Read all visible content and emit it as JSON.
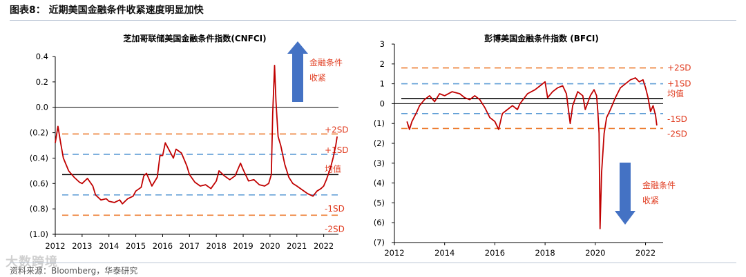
{
  "figure": {
    "title": "图表8：  近期美国金融条件收紧速度明显加快",
    "source": "资料来源：Bloomberg，华泰研究",
    "watermark": "大数跨境"
  },
  "colors": {
    "series": "#c00000",
    "zero": "#000000",
    "sd2": "#ed7d31",
    "sd1": "#5b9bd5",
    "arrow": "#4472c4",
    "mean": "#000000",
    "label": "#e03a1e"
  },
  "chart_data": [
    {
      "type": "line",
      "title": "芝加哥联储美国金融条件指数(CNFCI)",
      "xlabel": "",
      "ylabel": "",
      "x_range": [
        2012,
        2022.55
      ],
      "x_ticks": [
        2012,
        2013,
        2014,
        2015,
        2016,
        2017,
        2018,
        2019,
        2020,
        2021,
        2022
      ],
      "x_tick_labels": [
        "2012",
        "2013",
        "2014",
        "2015",
        "2016",
        "2017",
        "2018",
        "2019",
        "2020",
        "2021",
        "2022"
      ],
      "ylim": [
        -1.0,
        0.4
      ],
      "y_ticks": [
        0.4,
        0.2,
        0.0,
        -0.2,
        -0.4,
        -0.6,
        -0.8,
        -1.0
      ],
      "y_tick_labels": [
        "0.4",
        "0.2",
        "0.0",
        "(0.2)",
        "(0.4)",
        "(0.6)",
        "(0.8)",
        "(1.0)"
      ],
      "zero_line": 0.0,
      "reference_lines": [
        {
          "name": "+2SD",
          "value": -0.21,
          "style": "sd2"
        },
        {
          "name": "+1SD",
          "value": -0.37,
          "style": "sd1"
        },
        {
          "name": "均值",
          "value": -0.53,
          "style": "mean"
        },
        {
          "name": "-1SD",
          "value": -0.69,
          "style": "sd1"
        },
        {
          "name": "-2SD",
          "value": -0.85,
          "style": "sd2"
        }
      ],
      "annotation": {
        "text_lines": [
          "金融条件",
          "收紧"
        ],
        "direction": "up"
      },
      "series": [
        {
          "name": "CNFCI",
          "points": [
            [
              2012.0,
              -0.28
            ],
            [
              2012.1,
              -0.15
            ],
            [
              2012.2,
              -0.28
            ],
            [
              2012.3,
              -0.4
            ],
            [
              2012.5,
              -0.5
            ],
            [
              2012.7,
              -0.55
            ],
            [
              2012.9,
              -0.59
            ],
            [
              2013.0,
              -0.6
            ],
            [
              2013.2,
              -0.56
            ],
            [
              2013.4,
              -0.62
            ],
            [
              2013.5,
              -0.69
            ],
            [
              2013.7,
              -0.73
            ],
            [
              2013.9,
              -0.72
            ],
            [
              2014.0,
              -0.74
            ],
            [
              2014.2,
              -0.75
            ],
            [
              2014.4,
              -0.73
            ],
            [
              2014.5,
              -0.76
            ],
            [
              2014.7,
              -0.72
            ],
            [
              2014.9,
              -0.7
            ],
            [
              2015.0,
              -0.66
            ],
            [
              2015.2,
              -0.63
            ],
            [
              2015.3,
              -0.54
            ],
            [
              2015.4,
              -0.52
            ],
            [
              2015.6,
              -0.62
            ],
            [
              2015.8,
              -0.55
            ],
            [
              2015.9,
              -0.38
            ],
            [
              2016.0,
              -0.38
            ],
            [
              2016.1,
              -0.28
            ],
            [
              2016.3,
              -0.36
            ],
            [
              2016.4,
              -0.4
            ],
            [
              2016.5,
              -0.33
            ],
            [
              2016.7,
              -0.36
            ],
            [
              2016.9,
              -0.46
            ],
            [
              2017.0,
              -0.53
            ],
            [
              2017.2,
              -0.59
            ],
            [
              2017.4,
              -0.62
            ],
            [
              2017.6,
              -0.61
            ],
            [
              2017.8,
              -0.64
            ],
            [
              2018.0,
              -0.58
            ],
            [
              2018.1,
              -0.5
            ],
            [
              2018.3,
              -0.54
            ],
            [
              2018.5,
              -0.57
            ],
            [
              2018.7,
              -0.54
            ],
            [
              2018.9,
              -0.44
            ],
            [
              2019.0,
              -0.49
            ],
            [
              2019.2,
              -0.58
            ],
            [
              2019.4,
              -0.57
            ],
            [
              2019.6,
              -0.61
            ],
            [
              2019.8,
              -0.62
            ],
            [
              2019.95,
              -0.6
            ],
            [
              2020.05,
              -0.53
            ],
            [
              2020.1,
              -0.05
            ],
            [
              2020.17,
              0.33
            ],
            [
              2020.22,
              0.05
            ],
            [
              2020.3,
              -0.23
            ],
            [
              2020.4,
              -0.3
            ],
            [
              2020.55,
              -0.45
            ],
            [
              2020.7,
              -0.55
            ],
            [
              2020.85,
              -0.6
            ],
            [
              2021.0,
              -0.62
            ],
            [
              2021.2,
              -0.65
            ],
            [
              2021.4,
              -0.68
            ],
            [
              2021.6,
              -0.7
            ],
            [
              2021.75,
              -0.66
            ],
            [
              2021.9,
              -0.64
            ],
            [
              2022.0,
              -0.62
            ],
            [
              2022.1,
              -0.57
            ],
            [
              2022.25,
              -0.48
            ],
            [
              2022.35,
              -0.4
            ],
            [
              2022.45,
              -0.3
            ],
            [
              2022.5,
              -0.23
            ]
          ]
        }
      ]
    },
    {
      "type": "line",
      "title": "彭博美国金融条件指数 (BFCI)",
      "xlabel": "",
      "ylabel": "",
      "x_range": [
        2012,
        2022.7
      ],
      "x_ticks": [
        2012,
        2014,
        2016,
        2018,
        2020,
        2022
      ],
      "x_tick_labels": [
        "2012",
        "2014",
        "2016",
        "2018",
        "2020",
        "2022"
      ],
      "ylim": [
        -7,
        3
      ],
      "y_ticks": [
        3,
        2,
        1,
        0,
        -1,
        -2,
        -3,
        -4,
        -5,
        -6,
        -7
      ],
      "y_tick_labels": [
        "3",
        "2",
        "1",
        "0",
        "(1)",
        "(2)",
        "(3)",
        "(4)",
        "(5)",
        "(6)",
        "(7)"
      ],
      "zero_line": 0,
      "reference_lines": [
        {
          "name": "+2SD",
          "value": 1.8,
          "style": "sd2"
        },
        {
          "name": "+1SD",
          "value": 1.0,
          "style": "sd1"
        },
        {
          "name": "均值",
          "value": 0.25,
          "style": "mean"
        },
        {
          "name": "-1SD",
          "value": -0.5,
          "style": "sd1"
        },
        {
          "name": "-2SD",
          "value": -1.25,
          "style": "sd2"
        }
      ],
      "annotation": {
        "text_lines": [
          "金融条件",
          "收紧"
        ],
        "direction": "down"
      },
      "series": [
        {
          "name": "BFCI",
          "points": [
            [
              2012.5,
              -0.9
            ],
            [
              2012.6,
              -1.3
            ],
            [
              2012.7,
              -0.9
            ],
            [
              2012.9,
              -0.4
            ],
            [
              2013.0,
              -0.1
            ],
            [
              2013.2,
              0.2
            ],
            [
              2013.4,
              0.4
            ],
            [
              2013.6,
              0.1
            ],
            [
              2013.8,
              0.5
            ],
            [
              2014.0,
              0.4
            ],
            [
              2014.3,
              0.6
            ],
            [
              2014.6,
              0.5
            ],
            [
              2014.8,
              0.3
            ],
            [
              2015.0,
              0.2
            ],
            [
              2015.2,
              0.4
            ],
            [
              2015.4,
              0.2
            ],
            [
              2015.6,
              -0.2
            ],
            [
              2015.8,
              -0.7
            ],
            [
              2016.0,
              -0.9
            ],
            [
              2016.15,
              -1.3
            ],
            [
              2016.3,
              -0.5
            ],
            [
              2016.5,
              -0.3
            ],
            [
              2016.7,
              -0.1
            ],
            [
              2016.9,
              -0.3
            ],
            [
              2017.0,
              0.0
            ],
            [
              2017.3,
              0.5
            ],
            [
              2017.6,
              0.7
            ],
            [
              2017.8,
              0.9
            ],
            [
              2018.0,
              1.1
            ],
            [
              2018.1,
              0.3
            ],
            [
              2018.3,
              0.6
            ],
            [
              2018.5,
              0.8
            ],
            [
              2018.7,
              0.9
            ],
            [
              2018.85,
              0.5
            ],
            [
              2019.0,
              -1.0
            ],
            [
              2019.1,
              -0.1
            ],
            [
              2019.3,
              0.6
            ],
            [
              2019.5,
              0.4
            ],
            [
              2019.6,
              -0.3
            ],
            [
              2019.8,
              0.4
            ],
            [
              2019.95,
              0.7
            ],
            [
              2020.05,
              0.4
            ],
            [
              2020.1,
              -0.4
            ],
            [
              2020.15,
              -1.5
            ],
            [
              2020.19,
              -6.3
            ],
            [
              2020.25,
              -3.5
            ],
            [
              2020.35,
              -1.5
            ],
            [
              2020.45,
              -0.7
            ],
            [
              2020.6,
              -0.3
            ],
            [
              2020.8,
              0.3
            ],
            [
              2021.0,
              0.8
            ],
            [
              2021.2,
              1.0
            ],
            [
              2021.4,
              1.2
            ],
            [
              2021.6,
              1.3
            ],
            [
              2021.75,
              1.1
            ],
            [
              2021.9,
              1.2
            ],
            [
              2022.0,
              0.8
            ],
            [
              2022.1,
              0.3
            ],
            [
              2022.2,
              -0.4
            ],
            [
              2022.3,
              -0.1
            ],
            [
              2022.4,
              -0.6
            ],
            [
              2022.45,
              -1.1
            ]
          ]
        }
      ]
    }
  ]
}
